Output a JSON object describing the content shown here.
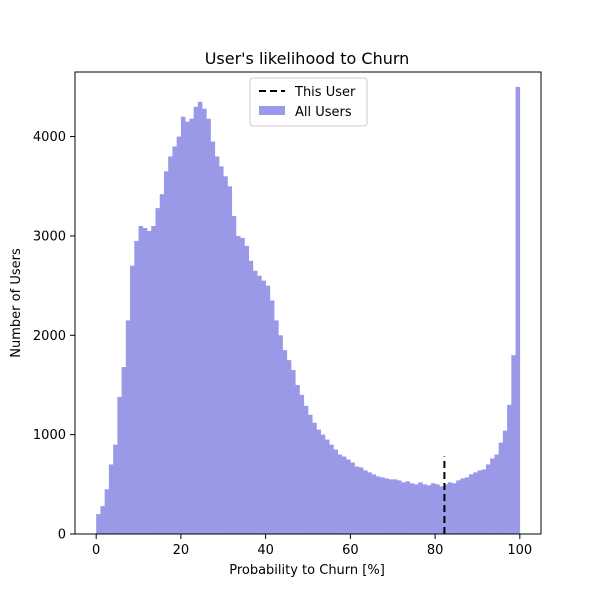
{
  "chart_data": {
    "type": "bar",
    "title": "User's likelihood to Churn",
    "xlabel": "Probability to Churn [%]",
    "ylabel": "Number of Users",
    "xlim": [
      -5,
      105
    ],
    "ylim": [
      0,
      4650
    ],
    "xticks": [
      0,
      20,
      40,
      60,
      80,
      100
    ],
    "yticks": [
      0,
      1000,
      2000,
      3000,
      4000
    ],
    "xtick_labels": [
      "0",
      "20",
      "40",
      "60",
      "80",
      "100"
    ],
    "ytick_labels": [
      "0",
      "1000",
      "2000",
      "3000",
      "4000"
    ],
    "bin_start": 0,
    "bin_width": 1,
    "values": [
      200,
      280,
      450,
      700,
      900,
      1380,
      1680,
      2150,
      2700,
      2950,
      3100,
      3080,
      3050,
      3100,
      3280,
      3420,
      3650,
      3800,
      3900,
      4000,
      4200,
      4150,
      4180,
      4300,
      4350,
      4280,
      4180,
      3950,
      3800,
      3700,
      3600,
      3500,
      3200,
      3000,
      2980,
      2900,
      2750,
      2650,
      2600,
      2550,
      2500,
      2350,
      2150,
      2000,
      1850,
      1750,
      1650,
      1500,
      1400,
      1290,
      1200,
      1120,
      1050,
      1000,
      950,
      900,
      850,
      800,
      780,
      750,
      720,
      680,
      670,
      640,
      620,
      600,
      580,
      570,
      560,
      550,
      550,
      540,
      520,
      530,
      510,
      500,
      520,
      500,
      490,
      510,
      500,
      480,
      500,
      520,
      510,
      540,
      560,
      570,
      600,
      620,
      640,
      650,
      700,
      760,
      800,
      920,
      1040,
      1300,
      1800,
      4500
    ],
    "series": [
      {
        "name": "This User",
        "type": "vline",
        "x": 82.2,
        "y_top": 780,
        "color": "#000000",
        "style": "dashed"
      },
      {
        "name": "All Users",
        "type": "histogram",
        "color": "#9999e8"
      }
    ],
    "legend": {
      "position": "top-center"
    },
    "grid": false
  }
}
